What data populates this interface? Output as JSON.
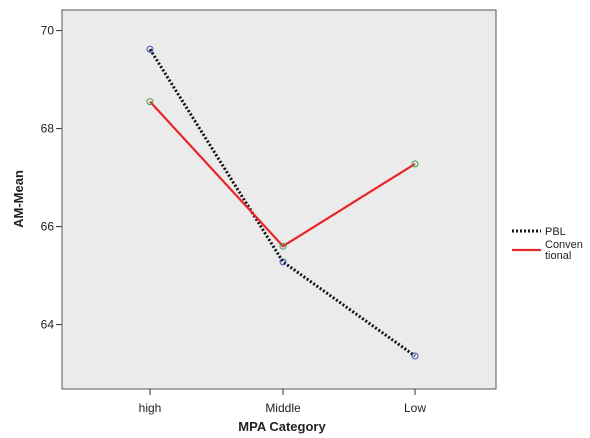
{
  "chart_data": {
    "type": "line",
    "title": "",
    "xlabel": "MPA Category",
    "ylabel": "AM-Mean",
    "categories": [
      "high",
      "Middle",
      "Low"
    ],
    "y_ticks": [
      64,
      66,
      68,
      70
    ],
    "ylim": [
      62.7,
      70.3
    ],
    "grid": false,
    "background": "#ebebeb",
    "legend_position": "right",
    "series": [
      {
        "name": "PBL",
        "values": [
          69.62,
          65.28,
          63.36
        ],
        "color": "#111111",
        "style": "dotted",
        "marker_color": "#3b4fb8"
      },
      {
        "name": "Conven\ntional",
        "label_lines": [
          "Conven",
          "tional"
        ],
        "values": [
          68.55,
          65.6,
          67.28
        ],
        "color": "#e8262a",
        "style": "solid",
        "marker_color": "#3aa04a"
      }
    ]
  }
}
